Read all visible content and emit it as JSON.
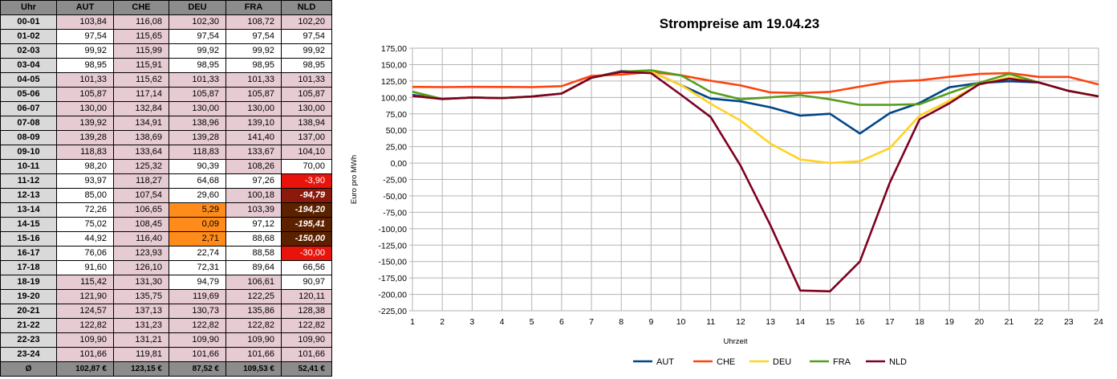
{
  "table": {
    "headers": [
      "Uhr",
      "AUT",
      "CHE",
      "DEU",
      "FRA",
      "NLD"
    ],
    "rows": [
      {
        "h": "00-01",
        "v": [
          "103,84",
          "116,08",
          "102,30",
          "108,72",
          "102,20"
        ],
        "c": [
          "pink",
          "pink",
          "pink",
          "pink",
          "pink"
        ]
      },
      {
        "h": "01-02",
        "v": [
          "97,54",
          "115,65",
          "97,54",
          "97,54",
          "97,54"
        ],
        "c": [
          "white",
          "pink",
          "white",
          "white",
          "white"
        ]
      },
      {
        "h": "02-03",
        "v": [
          "99,92",
          "115,99",
          "99,92",
          "99,92",
          "99,92"
        ],
        "c": [
          "white",
          "pink",
          "white",
          "white",
          "white"
        ]
      },
      {
        "h": "03-04",
        "v": [
          "98,95",
          "115,91",
          "98,95",
          "98,95",
          "98,95"
        ],
        "c": [
          "white",
          "pink",
          "white",
          "white",
          "white"
        ]
      },
      {
        "h": "04-05",
        "v": [
          "101,33",
          "115,62",
          "101,33",
          "101,33",
          "101,33"
        ],
        "c": [
          "pink",
          "pink",
          "pink",
          "pink",
          "pink"
        ]
      },
      {
        "h": "05-06",
        "v": [
          "105,87",
          "117,14",
          "105,87",
          "105,87",
          "105,87"
        ],
        "c": [
          "pink",
          "pink",
          "pink",
          "pink",
          "pink"
        ]
      },
      {
        "h": "06-07",
        "v": [
          "130,00",
          "132,84",
          "130,00",
          "130,00",
          "130,00"
        ],
        "c": [
          "pink",
          "pink",
          "pink",
          "pink",
          "pink"
        ]
      },
      {
        "h": "07-08",
        "v": [
          "139,92",
          "134,91",
          "138,96",
          "139,10",
          "138,94"
        ],
        "c": [
          "pink",
          "pink",
          "pink",
          "pink",
          "pink"
        ]
      },
      {
        "h": "08-09",
        "v": [
          "139,28",
          "138,69",
          "139,28",
          "141,40",
          "137,00"
        ],
        "c": [
          "pink",
          "pink",
          "pink",
          "pink",
          "pink"
        ]
      },
      {
        "h": "09-10",
        "v": [
          "118,83",
          "133,64",
          "118,83",
          "133,67",
          "104,10"
        ],
        "c": [
          "pink",
          "pink",
          "pink",
          "pink",
          "pink"
        ]
      },
      {
        "h": "10-11",
        "v": [
          "98,20",
          "125,32",
          "90,39",
          "108,26",
          "70,00"
        ],
        "c": [
          "white",
          "pink",
          "white",
          "pink",
          "white"
        ]
      },
      {
        "h": "11-12",
        "v": [
          "93,97",
          "118,27",
          "64,68",
          "97,26",
          "-3,90"
        ],
        "c": [
          "white",
          "pink",
          "white",
          "white",
          "red"
        ]
      },
      {
        "h": "12-13",
        "v": [
          "85,00",
          "107,54",
          "29,60",
          "100,18",
          "-94,79"
        ],
        "c": [
          "white",
          "pink",
          "white",
          "pink",
          "darkred"
        ]
      },
      {
        "h": "13-14",
        "v": [
          "72,26",
          "106,65",
          "5,29",
          "103,39",
          "-194,20"
        ],
        "c": [
          "white",
          "pink",
          "orange",
          "pink",
          "dark"
        ]
      },
      {
        "h": "14-15",
        "v": [
          "75,02",
          "108,45",
          "0,09",
          "97,12",
          "-195,41"
        ],
        "c": [
          "white",
          "pink",
          "orange",
          "white",
          "dark"
        ]
      },
      {
        "h": "15-16",
        "v": [
          "44,92",
          "116,40",
          "2,71",
          "88,68",
          "-150,00"
        ],
        "c": [
          "white",
          "pink",
          "orange",
          "white",
          "dark"
        ]
      },
      {
        "h": "16-17",
        "v": [
          "76,06",
          "123,93",
          "22,74",
          "88,58",
          "-30,00"
        ],
        "c": [
          "white",
          "pink",
          "white",
          "white",
          "red"
        ]
      },
      {
        "h": "17-18",
        "v": [
          "91,60",
          "126,10",
          "72,31",
          "89,64",
          "66,56"
        ],
        "c": [
          "white",
          "pink",
          "white",
          "white",
          "white"
        ]
      },
      {
        "h": "18-19",
        "v": [
          "115,42",
          "131,30",
          "94,79",
          "106,61",
          "90,97"
        ],
        "c": [
          "pink",
          "pink",
          "white",
          "pink",
          "white"
        ]
      },
      {
        "h": "19-20",
        "v": [
          "121,90",
          "135,75",
          "119,69",
          "122,25",
          "120,11"
        ],
        "c": [
          "pink",
          "pink",
          "pink",
          "pink",
          "pink"
        ]
      },
      {
        "h": "20-21",
        "v": [
          "124,57",
          "137,13",
          "130,73",
          "135,86",
          "128,38"
        ],
        "c": [
          "pink",
          "pink",
          "pink",
          "pink",
          "pink"
        ]
      },
      {
        "h": "21-22",
        "v": [
          "122,82",
          "131,23",
          "122,82",
          "122,82",
          "122,82"
        ],
        "c": [
          "pink",
          "pink",
          "pink",
          "pink",
          "pink"
        ]
      },
      {
        "h": "22-23",
        "v": [
          "109,90",
          "131,21",
          "109,90",
          "109,90",
          "109,90"
        ],
        "c": [
          "pink",
          "pink",
          "pink",
          "pink",
          "pink"
        ]
      },
      {
        "h": "23-24",
        "v": [
          "101,66",
          "119,81",
          "101,66",
          "101,66",
          "101,66"
        ],
        "c": [
          "pink",
          "pink",
          "pink",
          "pink",
          "pink"
        ]
      }
    ],
    "avg": {
      "h": "Ø",
      "v": [
        "102,87 €",
        "123,15 €",
        "87,52 €",
        "109,53 €",
        "52,41 €"
      ]
    }
  },
  "chart_data": {
    "type": "line",
    "title": "Strompreise am 19.04.23",
    "xlabel": "Uhrzeit",
    "ylabel": "Euro pro MWh",
    "x": [
      1,
      2,
      3,
      4,
      5,
      6,
      7,
      8,
      9,
      10,
      11,
      12,
      13,
      14,
      15,
      16,
      17,
      18,
      19,
      20,
      21,
      22,
      23,
      24
    ],
    "ylim": [
      -225,
      175
    ],
    "yticks": [
      "175,00",
      "150,00",
      "125,00",
      "100,00",
      "75,00",
      "50,00",
      "25,00",
      "0,00",
      "-25,00",
      "-50,00",
      "-75,00",
      "-100,00",
      "-125,00",
      "-150,00",
      "-175,00",
      "-200,00",
      "-225,00"
    ],
    "grid": true,
    "legend": "bottom",
    "series": [
      {
        "name": "AUT",
        "color": "#004586",
        "values": [
          103.84,
          97.54,
          99.92,
          98.95,
          101.33,
          105.87,
          130.0,
          139.92,
          139.28,
          118.83,
          98.2,
          93.97,
          85.0,
          72.26,
          75.02,
          44.92,
          76.06,
          91.6,
          115.42,
          121.9,
          124.57,
          122.82,
          109.9,
          101.66
        ]
      },
      {
        "name": "CHE",
        "color": "#ff420e",
        "values": [
          116.08,
          115.65,
          115.99,
          115.91,
          115.62,
          117.14,
          132.84,
          134.91,
          138.69,
          133.64,
          125.32,
          118.27,
          107.54,
          106.65,
          108.45,
          116.4,
          123.93,
          126.1,
          131.3,
          135.75,
          137.13,
          131.23,
          131.21,
          119.81
        ]
      },
      {
        "name": "DEU",
        "color": "#ffd320",
        "values": [
          102.3,
          97.54,
          99.92,
          98.95,
          101.33,
          105.87,
          130.0,
          138.96,
          139.28,
          118.83,
          90.39,
          64.68,
          29.6,
          5.29,
          0.09,
          2.71,
          22.74,
          72.31,
          94.79,
          119.69,
          130.73,
          122.82,
          109.9,
          101.66
        ]
      },
      {
        "name": "FRA",
        "color": "#579d1c",
        "values": [
          108.72,
          97.54,
          99.92,
          98.95,
          101.33,
          105.87,
          130.0,
          139.1,
          141.4,
          133.67,
          108.26,
          97.26,
          100.18,
          103.39,
          97.12,
          88.68,
          88.58,
          89.64,
          106.61,
          122.25,
          135.86,
          122.82,
          109.9,
          101.66
        ]
      },
      {
        "name": "NLD",
        "color": "#7e0021",
        "values": [
          102.2,
          97.54,
          99.92,
          98.95,
          101.33,
          105.87,
          130.0,
          138.94,
          137.0,
          104.1,
          70.0,
          -3.9,
          -94.79,
          -194.2,
          -195.41,
          -150.0,
          -30.0,
          66.56,
          90.97,
          120.11,
          128.38,
          122.82,
          109.9,
          101.66
        ]
      }
    ]
  }
}
